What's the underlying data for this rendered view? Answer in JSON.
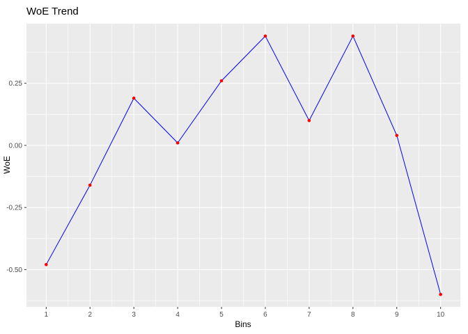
{
  "chart_data": {
    "type": "line",
    "title": "WoE Trend",
    "xlabel": "Bins",
    "ylabel": "WoE",
    "x": [
      1,
      2,
      3,
      4,
      5,
      6,
      7,
      8,
      9,
      10
    ],
    "x_tick_labels": [
      "1",
      "2",
      "3",
      "4",
      "5",
      "6",
      "7",
      "8",
      "9",
      "10"
    ],
    "series": [
      {
        "name": "WoE",
        "values": [
          -0.48,
          -0.16,
          0.19,
          0.01,
          0.26,
          0.44,
          0.1,
          0.44,
          0.04,
          -0.6
        ]
      }
    ],
    "y_ticks": [
      -0.5,
      -0.25,
      0.0,
      0.25
    ],
    "y_tick_labels": [
      "-0.50",
      "-0.25",
      "0.00",
      "0.25"
    ],
    "xlim": [
      0.55,
      10.45
    ],
    "ylim": [
      -0.65,
      0.49
    ],
    "grid": true,
    "legend": false,
    "colors": {
      "line": "#0000FF",
      "point": "#FF0000",
      "panel_bg": "#EBEBEB",
      "grid_major": "#FFFFFF",
      "grid_minor": "#FFFFFF",
      "tick_mark": "#333333",
      "tick_label": "#4D4D4D",
      "title": "#000000"
    }
  }
}
